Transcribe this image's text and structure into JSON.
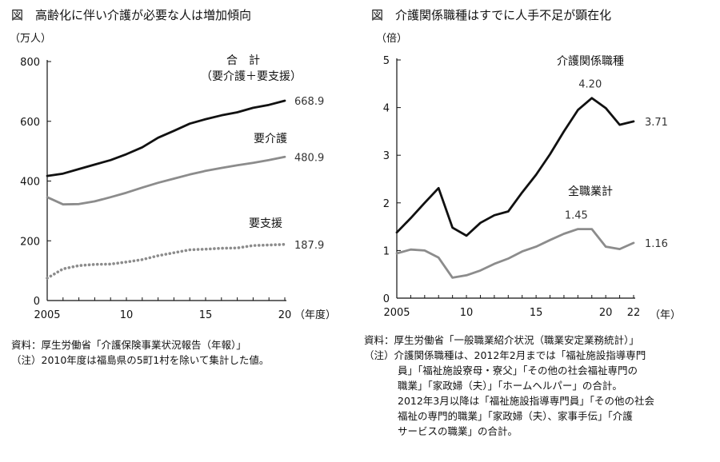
{
  "chart_data": [
    {
      "type": "line",
      "title": "図　高齢化に伴い介護が必要な人は増加傾向",
      "ylabel": "（万人）",
      "xlabel": "（年度）",
      "ylim": [
        0,
        800
      ],
      "xlim": [
        2005,
        2020
      ],
      "yticks": [
        0,
        200,
        400,
        600,
        800
      ],
      "xticks": [
        {
          "value": 2005,
          "label": "2005"
        },
        {
          "value": 2010,
          "label": "10"
        },
        {
          "value": 2015,
          "label": "15"
        },
        {
          "value": 2020,
          "label": "20"
        }
      ],
      "x": [
        2005,
        2006,
        2007,
        2008,
        2009,
        2010,
        2011,
        2012,
        2013,
        2014,
        2015,
        2016,
        2017,
        2018,
        2019,
        2020
      ],
      "series": [
        {
          "name": "合　計",
          "sublabel": "（要介護＋要支援）",
          "style": "solid",
          "color": "#111111",
          "values": [
            417,
            425,
            440,
            455,
            470,
            490,
            513,
            545,
            568,
            592,
            607,
            620,
            630,
            645,
            655,
            668.9
          ],
          "end_label": "668.9"
        },
        {
          "name": "要介護",
          "style": "solid",
          "color": "#8c8c8c",
          "values": [
            346,
            322,
            323,
            332,
            346,
            361,
            378,
            394,
            408,
            422,
            434,
            444,
            453,
            461,
            470,
            480.9
          ],
          "end_label": "480.9"
        },
        {
          "name": "要支援",
          "style": "dotted",
          "color": "#8c8c8c",
          "values": [
            75,
            106,
            117,
            121,
            122,
            129,
            137,
            150,
            160,
            170,
            172,
            175,
            176,
            184,
            186,
            187.9
          ],
          "end_label": "187.9"
        }
      ],
      "notes": [
        "資料：厚生労働省「介護保険事業状況報告（年報）」",
        "（注）2010年度は福島県の5町1村を除いて集計した値。"
      ]
    },
    {
      "type": "line",
      "title": "図　介護関係職種はすでに人手不足が顕在化",
      "ylabel": "（倍）",
      "xlabel": "（年）",
      "ylim": [
        0,
        5
      ],
      "xlim": [
        2005,
        2022
      ],
      "yticks": [
        0,
        1,
        2,
        3,
        4,
        5
      ],
      "xticks": [
        {
          "value": 2005,
          "label": "2005"
        },
        {
          "value": 2010,
          "label": "10"
        },
        {
          "value": 2015,
          "label": "15"
        },
        {
          "value": 2020,
          "label": "20"
        },
        {
          "value": 2022,
          "label": "22"
        }
      ],
      "x": [
        2005,
        2006,
        2007,
        2008,
        2009,
        2010,
        2011,
        2012,
        2013,
        2014,
        2015,
        2016,
        2017,
        2018,
        2019,
        2020,
        2021,
        2022
      ],
      "series": [
        {
          "name": "介護関係職種",
          "style": "solid",
          "color": "#111111",
          "values": [
            1.38,
            1.68,
            2.0,
            2.31,
            1.48,
            1.31,
            1.58,
            1.74,
            1.82,
            2.22,
            2.59,
            3.02,
            3.5,
            3.95,
            4.2,
            3.99,
            3.64,
            3.71
          ],
          "peak_label": "4.20",
          "end_label": "3.71"
        },
        {
          "name": "全職業計",
          "style": "solid",
          "color": "#8c8c8c",
          "values": [
            0.94,
            1.02,
            1.0,
            0.85,
            0.43,
            0.48,
            0.58,
            0.72,
            0.83,
            0.98,
            1.08,
            1.22,
            1.35,
            1.45,
            1.45,
            1.08,
            1.03,
            1.16
          ],
          "peak_label": "1.45",
          "end_label": "1.16"
        }
      ],
      "notes": [
        "資料：厚生労働省「一般職業紹介状況（職業安定業務統計）」",
        "（注）介護関係職種は、2012年2月までは「福祉施設指導専門",
        "員」「福祉施設寮母・寮父」「その他の社会福祉専門の",
        "職業」「家政婦（夫）」「ホームヘルパー」の合計。",
        "2012年3月以降は「福祉施設指導専門員」「その他の社会",
        "福祉の専門的職業」「家政婦（夫）、家事手伝」「介護",
        "サービスの職業」の合計。"
      ]
    }
  ]
}
